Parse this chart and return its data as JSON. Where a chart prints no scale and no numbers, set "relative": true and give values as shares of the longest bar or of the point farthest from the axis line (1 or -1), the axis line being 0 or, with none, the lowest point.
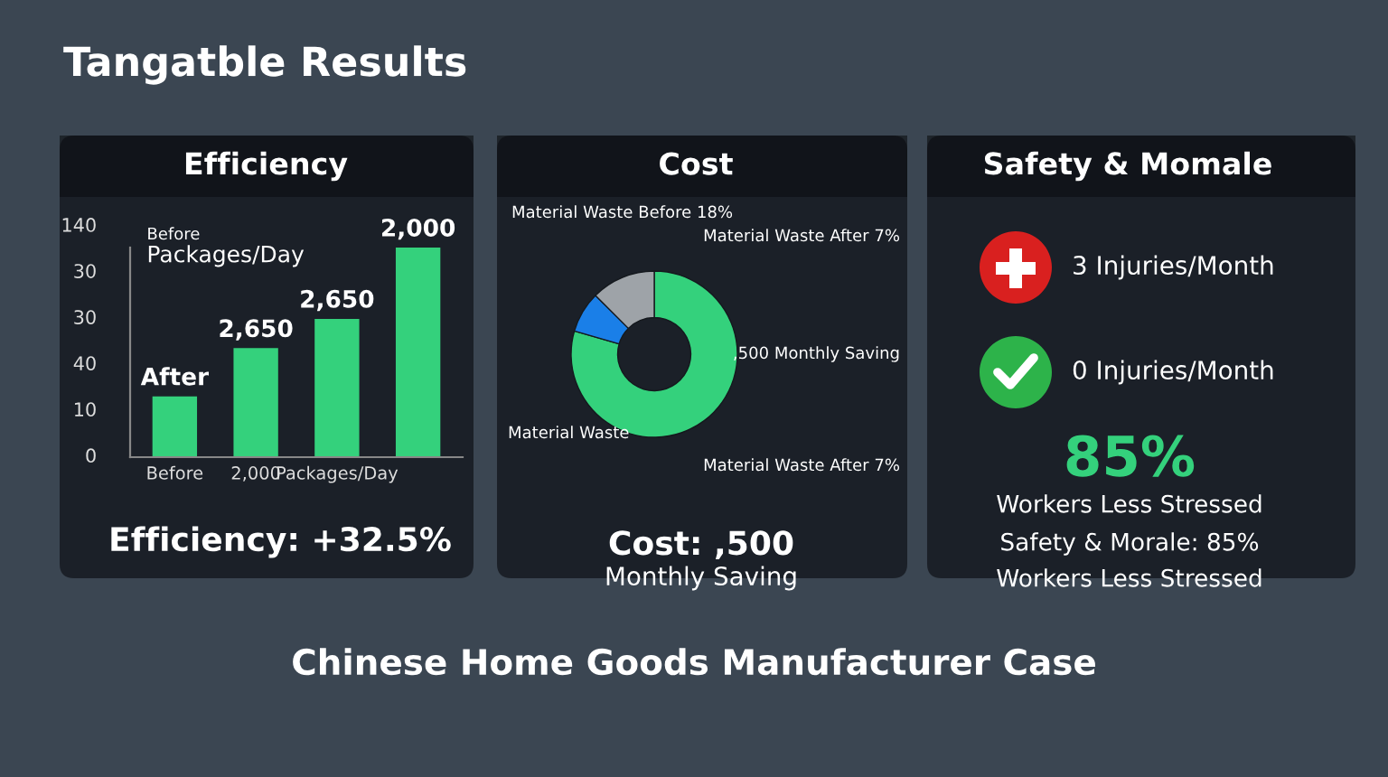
{
  "chart_data": [
    {
      "type": "other",
      "title": "Tangatble Results",
      "annotations": [
        "Chinese Home Goods Manufacturer Case"
      ]
    },
    {
      "type": "bar",
      "title": "Efficiency",
      "categories": [
        "Before",
        "2,000",
        "Packages/Day",
        null
      ],
      "values": [
        0.29,
        0.52,
        0.66,
        1
      ],
      "relative": true,
      "color": "#34d17c",
      "annotations": [
        "Before",
        "Packages/Day",
        "140",
        "30",
        "30",
        "40",
        "10",
        "0",
        "After",
        "2,650",
        "2,650",
        "2,000",
        "Efficiency: +32.5%"
      ]
    },
    {
      "type": "donut",
      "title": "Cost",
      "categories": [
        "Material Waste",
        null,
        "Material Waste Before 18%"
      ],
      "values": [
        79.5,
        8,
        12.5
      ],
      "colors": [
        "#34d17c",
        "#1a7fe8",
        "#9ea3a8"
      ],
      "annotations": [
        "Material Waste After 7%",
        ",500 Monthly Saving",
        "Material Waste After 7%",
        "Cost: ,500",
        "Monthly Saving"
      ]
    },
    {
      "type": "other",
      "title": "Safety & Momale",
      "annotations": [
        "3 Injuries/Month",
        "0 Injuries/Month",
        "85%",
        "Workers Less Stressed",
        "Safety & Morale: 85%",
        "Workers Less Stressed"
      ]
    }
  ]
}
